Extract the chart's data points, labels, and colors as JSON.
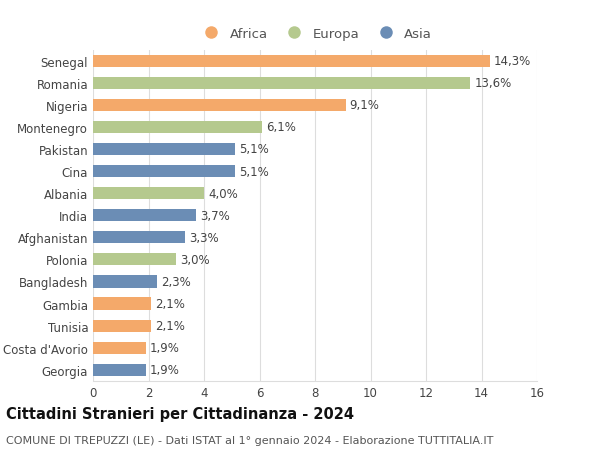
{
  "countries": [
    "Senegal",
    "Romania",
    "Nigeria",
    "Montenegro",
    "Pakistan",
    "Cina",
    "Albania",
    "India",
    "Afghanistan",
    "Polonia",
    "Bangladesh",
    "Gambia",
    "Tunisia",
    "Costa d'Avorio",
    "Georgia"
  ],
  "values": [
    14.3,
    13.6,
    9.1,
    6.1,
    5.1,
    5.1,
    4.0,
    3.7,
    3.3,
    3.0,
    2.3,
    2.1,
    2.1,
    1.9,
    1.9
  ],
  "labels": [
    "14,3%",
    "13,6%",
    "9,1%",
    "6,1%",
    "5,1%",
    "5,1%",
    "4,0%",
    "3,7%",
    "3,3%",
    "3,0%",
    "2,3%",
    "2,1%",
    "2,1%",
    "1,9%",
    "1,9%"
  ],
  "continents": [
    "Africa",
    "Europa",
    "Africa",
    "Europa",
    "Asia",
    "Asia",
    "Europa",
    "Asia",
    "Asia",
    "Europa",
    "Asia",
    "Africa",
    "Africa",
    "Africa",
    "Asia"
  ],
  "colors": {
    "Africa": "#F4A96A",
    "Europa": "#B5C98E",
    "Asia": "#6B8DB5"
  },
  "legend_order": [
    "Africa",
    "Europa",
    "Asia"
  ],
  "xlim": [
    0,
    16
  ],
  "xticks": [
    0,
    2,
    4,
    6,
    8,
    10,
    12,
    14,
    16
  ],
  "title": "Cittadini Stranieri per Cittadinanza - 2024",
  "subtitle": "COMUNE DI TREPUZZI (LE) - Dati ISTAT al 1° gennaio 2024 - Elaborazione TUTTITALIA.IT",
  "background_color": "#ffffff",
  "grid_color": "#dddddd",
  "bar_height": 0.55,
  "label_fontsize": 8.5,
  "tick_fontsize": 8.5,
  "title_fontsize": 10.5,
  "subtitle_fontsize": 8.0,
  "legend_fontsize": 9.5
}
